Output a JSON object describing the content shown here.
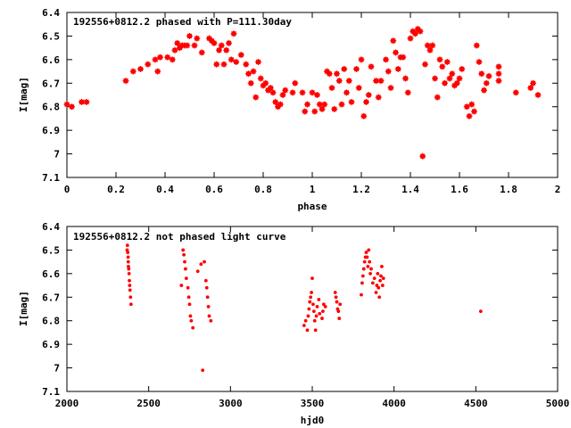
{
  "colors": {
    "points": "#ff0000",
    "axes": "#000000",
    "background": "#ffffff"
  },
  "chart_data": [
    {
      "type": "scatter",
      "title": "192556+0812.2 phased with P=111.30day",
      "xlabel": "phase",
      "ylabel": "I[mag]",
      "xlim": [
        0,
        2
      ],
      "ylim": [
        6.4,
        7.1
      ],
      "y_inverted": true,
      "grid": false,
      "xticks": [
        0,
        0.2,
        0.4,
        0.6,
        0.8,
        1,
        1.2,
        1.4,
        1.6,
        1.8,
        2
      ],
      "xtick_labels": [
        "0",
        "0.2",
        "0.4",
        "0.6",
        "0.8",
        "1",
        "1.2",
        "1.4",
        "1.6",
        "1.8",
        "2"
      ],
      "yticks": [
        6.4,
        6.5,
        6.6,
        6.7,
        6.8,
        6.9,
        7.0,
        7.1
      ],
      "ytick_labels": [
        "6.4",
        "6.5",
        "6.6",
        "6.7",
        "6.8",
        "6.9",
        "7",
        "7.1"
      ],
      "marker": "star",
      "points": [
        [
          0.0,
          6.79
        ],
        [
          0.02,
          6.8
        ],
        [
          0.06,
          6.78
        ],
        [
          0.08,
          6.78
        ],
        [
          0.24,
          6.69
        ],
        [
          0.27,
          6.65
        ],
        [
          0.3,
          6.64
        ],
        [
          0.33,
          6.62
        ],
        [
          0.36,
          6.6
        ],
        [
          0.37,
          6.65
        ],
        [
          0.38,
          6.59
        ],
        [
          0.41,
          6.59
        ],
        [
          0.43,
          6.6
        ],
        [
          0.44,
          6.56
        ],
        [
          0.45,
          6.53
        ],
        [
          0.46,
          6.55
        ],
        [
          0.47,
          6.54
        ],
        [
          0.48,
          6.54
        ],
        [
          0.49,
          6.54
        ],
        [
          0.5,
          6.5
        ],
        [
          0.52,
          6.54
        ],
        [
          0.53,
          6.51
        ],
        [
          0.55,
          6.57
        ],
        [
          0.58,
          6.51
        ],
        [
          0.59,
          6.52
        ],
        [
          0.6,
          6.53
        ],
        [
          0.61,
          6.62
        ],
        [
          0.62,
          6.56
        ],
        [
          0.63,
          6.54
        ],
        [
          0.64,
          6.62
        ],
        [
          0.65,
          6.56
        ],
        [
          0.66,
          6.53
        ],
        [
          0.67,
          6.6
        ],
        [
          0.68,
          6.49
        ],
        [
          0.69,
          6.61
        ],
        [
          0.71,
          6.58
        ],
        [
          0.73,
          6.62
        ],
        [
          0.74,
          6.66
        ],
        [
          0.75,
          6.7
        ],
        [
          0.76,
          6.65
        ],
        [
          0.77,
          6.76
        ],
        [
          0.78,
          6.61
        ],
        [
          0.79,
          6.68
        ],
        [
          0.8,
          6.71
        ],
        [
          0.81,
          6.7
        ],
        [
          0.82,
          6.73
        ],
        [
          0.83,
          6.72
        ],
        [
          0.84,
          6.74
        ],
        [
          0.85,
          6.78
        ],
        [
          0.86,
          6.8
        ],
        [
          0.87,
          6.79
        ],
        [
          0.88,
          6.75
        ],
        [
          0.89,
          6.73
        ],
        [
          0.92,
          6.74
        ],
        [
          0.93,
          6.7
        ],
        [
          0.96,
          6.74
        ],
        [
          0.97,
          6.82
        ],
        [
          0.98,
          6.79
        ],
        [
          1.0,
          6.74
        ],
        [
          1.01,
          6.82
        ],
        [
          1.02,
          6.75
        ],
        [
          1.03,
          6.79
        ],
        [
          1.04,
          6.81
        ],
        [
          1.05,
          6.79
        ],
        [
          1.06,
          6.65
        ],
        [
          1.07,
          6.66
        ],
        [
          1.08,
          6.72
        ],
        [
          1.09,
          6.81
        ],
        [
          1.1,
          6.66
        ],
        [
          1.11,
          6.69
        ],
        [
          1.12,
          6.79
        ],
        [
          1.13,
          6.64
        ],
        [
          1.14,
          6.74
        ],
        [
          1.15,
          6.69
        ],
        [
          1.16,
          6.78
        ],
        [
          1.18,
          6.64
        ],
        [
          1.19,
          6.72
        ],
        [
          1.2,
          6.6
        ],
        [
          1.21,
          6.84
        ],
        [
          1.22,
          6.78
        ],
        [
          1.23,
          6.75
        ],
        [
          1.24,
          6.63
        ],
        [
          1.26,
          6.69
        ],
        [
          1.27,
          6.76
        ],
        [
          1.28,
          6.69
        ],
        [
          1.3,
          6.6
        ],
        [
          1.31,
          6.65
        ],
        [
          1.32,
          6.72
        ],
        [
          1.33,
          6.52
        ],
        [
          1.34,
          6.57
        ],
        [
          1.35,
          6.64
        ],
        [
          1.36,
          6.59
        ],
        [
          1.37,
          6.59
        ],
        [
          1.38,
          6.68
        ],
        [
          1.39,
          6.74
        ],
        [
          1.4,
          6.51
        ],
        [
          1.41,
          6.48
        ],
        [
          1.42,
          6.49
        ],
        [
          1.43,
          6.47
        ],
        [
          1.44,
          6.48
        ],
        [
          1.45,
          7.01
        ],
        [
          1.46,
          6.62
        ],
        [
          1.47,
          6.54
        ],
        [
          1.48,
          6.56
        ],
        [
          1.49,
          6.54
        ],
        [
          1.5,
          6.68
        ],
        [
          1.51,
          6.76
        ],
        [
          1.52,
          6.6
        ],
        [
          1.53,
          6.63
        ],
        [
          1.54,
          6.7
        ],
        [
          1.55,
          6.61
        ],
        [
          1.56,
          6.68
        ],
        [
          1.57,
          6.66
        ],
        [
          1.58,
          6.71
        ],
        [
          1.59,
          6.7
        ],
        [
          1.6,
          6.68
        ],
        [
          1.61,
          6.64
        ],
        [
          1.63,
          6.8
        ],
        [
          1.64,
          6.84
        ],
        [
          1.65,
          6.79
        ],
        [
          1.66,
          6.82
        ],
        [
          1.67,
          6.54
        ],
        [
          1.68,
          6.61
        ],
        [
          1.69,
          6.66
        ],
        [
          1.7,
          6.73
        ],
        [
          1.71,
          6.7
        ],
        [
          1.72,
          6.67
        ],
        [
          1.76,
          6.63
        ],
        [
          1.76,
          6.66
        ],
        [
          1.76,
          6.69
        ],
        [
          1.83,
          6.74
        ],
        [
          1.89,
          6.72
        ],
        [
          1.9,
          6.7
        ],
        [
          1.92,
          6.75
        ]
      ]
    },
    {
      "type": "scatter",
      "title": "192556+0812.2 not phased light curve",
      "xlabel": "hjd0",
      "ylabel": "I[mag]",
      "xlim": [
        2000,
        5000
      ],
      "ylim": [
        6.4,
        7.1
      ],
      "y_inverted": true,
      "grid": false,
      "xticks": [
        2000,
        2500,
        3000,
        3500,
        4000,
        4500,
        5000
      ],
      "xtick_labels": [
        "2000",
        "2500",
        "3000",
        "3500",
        "4000",
        "4500",
        "5000"
      ],
      "yticks": [
        6.4,
        6.5,
        6.6,
        6.7,
        6.8,
        6.9,
        7.0,
        7.1
      ],
      "ytick_labels": [
        "6.4",
        "6.5",
        "6.6",
        "6.7",
        "6.8",
        "6.9",
        "7",
        "7.1"
      ],
      "marker": "dot",
      "points": [
        [
          2370,
          6.48
        ],
        [
          2372,
          6.51
        ],
        [
          2374,
          6.53
        ],
        [
          2375,
          6.55
        ],
        [
          2378,
          6.58
        ],
        [
          2380,
          6.6
        ],
        [
          2382,
          6.63
        ],
        [
          2384,
          6.65
        ],
        [
          2386,
          6.67
        ],
        [
          2389,
          6.7
        ],
        [
          2392,
          6.73
        ],
        [
          2368,
          6.5
        ],
        [
          2376,
          6.57
        ],
        [
          2710,
          6.5
        ],
        [
          2715,
          6.52
        ],
        [
          2720,
          6.55
        ],
        [
          2725,
          6.58
        ],
        [
          2730,
          6.62
        ],
        [
          2740,
          6.66
        ],
        [
          2745,
          6.7
        ],
        [
          2750,
          6.73
        ],
        [
          2755,
          6.78
        ],
        [
          2760,
          6.8
        ],
        [
          2770,
          6.83
        ],
        [
          2700,
          6.65
        ],
        [
          2800,
          6.59
        ],
        [
          2820,
          6.56
        ],
        [
          2830,
          7.01
        ],
        [
          2840,
          6.55
        ],
        [
          2850,
          6.63
        ],
        [
          2855,
          6.66
        ],
        [
          2860,
          6.7
        ],
        [
          2865,
          6.74
        ],
        [
          2870,
          6.78
        ],
        [
          2880,
          6.8
        ],
        [
          3450,
          6.82
        ],
        [
          3460,
          6.8
        ],
        [
          3470,
          6.84
        ],
        [
          3475,
          6.78
        ],
        [
          3480,
          6.75
        ],
        [
          3485,
          6.72
        ],
        [
          3490,
          6.7
        ],
        [
          3495,
          6.68
        ],
        [
          3500,
          6.62
        ],
        [
          3505,
          6.73
        ],
        [
          3510,
          6.76
        ],
        [
          3515,
          6.8
        ],
        [
          3520,
          6.84
        ],
        [
          3525,
          6.78
        ],
        [
          3530,
          6.74
        ],
        [
          3540,
          6.71
        ],
        [
          3545,
          6.77
        ],
        [
          3560,
          6.79
        ],
        [
          3565,
          6.76
        ],
        [
          3570,
          6.73
        ],
        [
          3580,
          6.74
        ],
        [
          3640,
          6.68
        ],
        [
          3645,
          6.7
        ],
        [
          3650,
          6.72
        ],
        [
          3655,
          6.75
        ],
        [
          3660,
          6.76
        ],
        [
          3665,
          6.79
        ],
        [
          3670,
          6.73
        ],
        [
          3800,
          6.69
        ],
        [
          3805,
          6.64
        ],
        [
          3810,
          6.61
        ],
        [
          3815,
          6.58
        ],
        [
          3820,
          6.55
        ],
        [
          3825,
          6.53
        ],
        [
          3830,
          6.51
        ],
        [
          3835,
          6.53
        ],
        [
          3840,
          6.57
        ],
        [
          3845,
          6.5
        ],
        [
          3850,
          6.55
        ],
        [
          3855,
          6.6
        ],
        [
          3860,
          6.58
        ],
        [
          3870,
          6.64
        ],
        [
          3880,
          6.62
        ],
        [
          3890,
          6.68
        ],
        [
          3895,
          6.65
        ],
        [
          3900,
          6.6
        ],
        [
          3905,
          6.66
        ],
        [
          3910,
          6.7
        ],
        [
          3915,
          6.63
        ],
        [
          3920,
          6.61
        ],
        [
          3925,
          6.57
        ],
        [
          3930,
          6.65
        ],
        [
          3935,
          6.62
        ],
        [
          4530,
          6.76
        ]
      ]
    }
  ]
}
